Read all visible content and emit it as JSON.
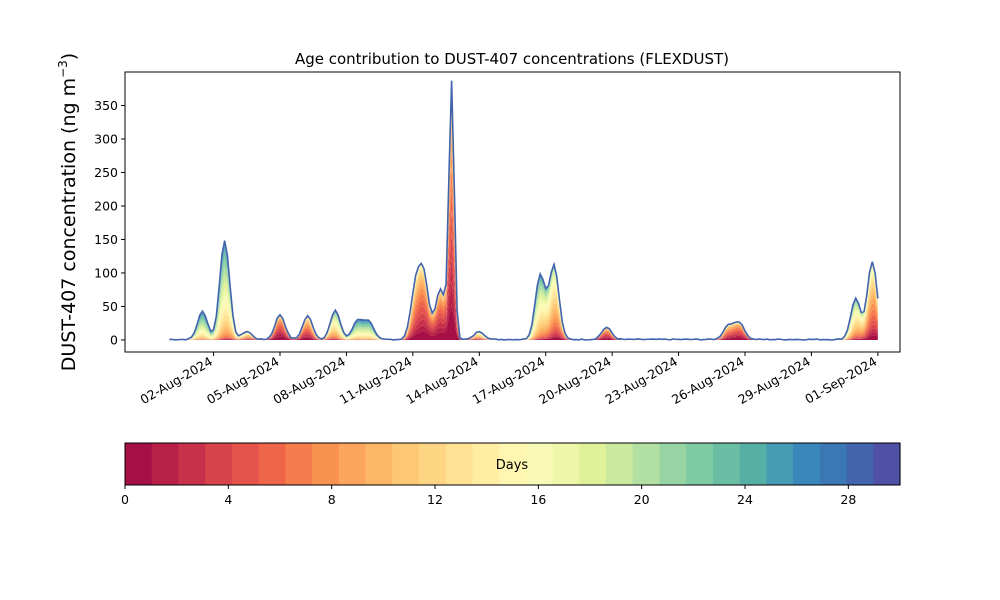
{
  "chart_data": {
    "type": "area",
    "title": "Age contribution to DUST-407 concentrations (FLEXDUST)",
    "xlabel": "",
    "ylabel": "DUST-407 concentration (ng m",
    "ylabel_sup": "−3",
    "ylabel_close": ")",
    "x_start": "2024-07-31",
    "x_end": "2024-09-01",
    "xlim": [
      "2024-07-29",
      "2024-09-02"
    ],
    "ylim": [
      -18,
      400
    ],
    "y_ticks": [
      0,
      50,
      100,
      150,
      200,
      250,
      300,
      350
    ],
    "x_ticks": [
      {
        "date": "2024-08-02",
        "label": "02-Aug-2024"
      },
      {
        "date": "2024-08-05",
        "label": "05-Aug-2024"
      },
      {
        "date": "2024-08-08",
        "label": "08-Aug-2024"
      },
      {
        "date": "2024-08-11",
        "label": "11-Aug-2024"
      },
      {
        "date": "2024-08-14",
        "label": "14-Aug-2024"
      },
      {
        "date": "2024-08-17",
        "label": "17-Aug-2024"
      },
      {
        "date": "2024-08-20",
        "label": "20-Aug-2024"
      },
      {
        "date": "2024-08-23",
        "label": "23-Aug-2024"
      },
      {
        "date": "2024-08-26",
        "label": "26-Aug-2024"
      },
      {
        "date": "2024-08-29",
        "label": "29-Aug-2024"
      },
      {
        "date": "2024-09-01",
        "label": "01-Sep-2024"
      }
    ],
    "peaks": [
      {
        "date": "2024-08-01T12:00",
        "total": 42
      },
      {
        "date": "2024-08-02T12:00",
        "total": 148
      },
      {
        "date": "2024-08-03T12:00",
        "total": 12
      },
      {
        "date": "2024-08-05T00:00",
        "total": 37
      },
      {
        "date": "2024-08-06T06:00",
        "total": 35
      },
      {
        "date": "2024-08-07T12:00",
        "total": 43
      },
      {
        "date": "2024-08-08T12:00",
        "total": 28
      },
      {
        "date": "2024-08-09T00:00",
        "total": 27
      },
      {
        "date": "2024-08-11T03:00",
        "total": 74
      },
      {
        "date": "2024-08-11T12:00",
        "total": 88
      },
      {
        "date": "2024-08-12T06:00",
        "total": 75
      },
      {
        "date": "2024-08-12T18:00",
        "total": 380
      },
      {
        "date": "2024-08-14T00:00",
        "total": 12
      },
      {
        "date": "2024-08-16T18:00",
        "total": 96
      },
      {
        "date": "2024-08-17T09:00",
        "total": 110
      },
      {
        "date": "2024-08-19T18:00",
        "total": 18
      },
      {
        "date": "2024-08-25T06:00",
        "total": 21
      },
      {
        "date": "2024-08-25T18:00",
        "total": 25
      },
      {
        "date": "2024-08-31T00:00",
        "total": 61
      },
      {
        "date": "2024-08-31T18:00",
        "total": 116
      }
    ],
    "colorbar": {
      "label": "Days",
      "min": 0,
      "max": 30,
      "ticks": [
        0,
        4,
        8,
        12,
        16,
        20,
        24,
        28
      ],
      "colors": [
        "#a50f46",
        "#b72147",
        "#c9314b",
        "#d8434c",
        "#e5534b",
        "#ef654a",
        "#f57c4c",
        "#f9914f",
        "#fca55d",
        "#fdb767",
        "#fec773",
        "#fed583",
        "#fee193",
        "#ffeda1",
        "#fff7b1",
        "#f9fab6",
        "#eef7a8",
        "#dff29a",
        "#c9e99e",
        "#b2e0a2",
        "#98d5a5",
        "#7fcba4",
        "#6bbda4",
        "#57b0a6",
        "#469db3",
        "#3a88bb",
        "#3b76b5",
        "#4264ad",
        "#5050a6"
      ]
    }
  }
}
